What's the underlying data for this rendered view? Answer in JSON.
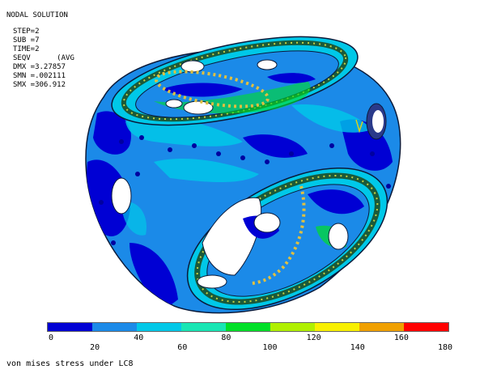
{
  "info": {
    "title": "NODAL SOLUTION",
    "lines": [
      "STEP=2",
      "SUB =7",
      "TIME=2",
      "SEQV      (AVG",
      "DMX =3.27857",
      "SMN =.002111",
      "SMX =306.912"
    ]
  },
  "legend": {
    "ticks": [
      "0",
      "20",
      "40",
      "60",
      "80",
      "100",
      "120",
      "140",
      "160",
      "180"
    ],
    "colors": [
      "#0000d4",
      "#1b8ae8",
      "#00c8e8",
      "#18e6b4",
      "#00e028",
      "#b0f000",
      "#f8f000",
      "#f0a000",
      "#ff0000"
    ]
  },
  "caption": "von mises stress under LC8"
}
